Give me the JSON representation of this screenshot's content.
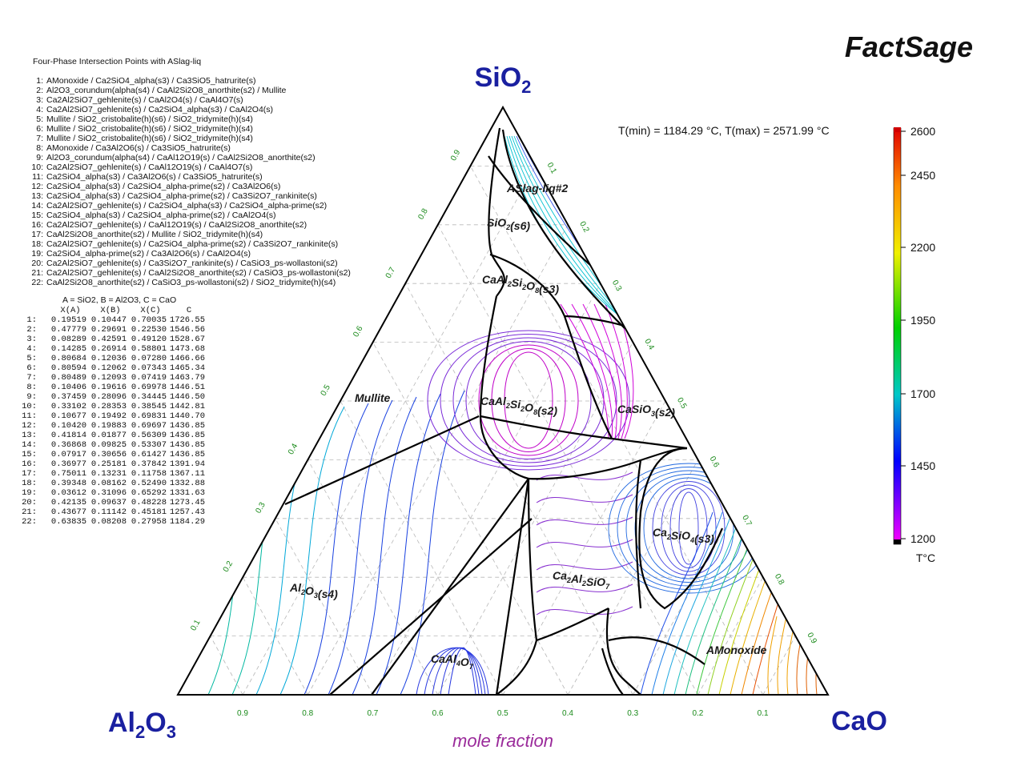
{
  "header": {
    "brand": "FactSage",
    "temp_range": "T(min) = 1184.29 °C, T(max) = 2571.99 °C"
  },
  "vertices": {
    "top": {
      "main": "SiO",
      "sub": "2"
    },
    "left": {
      "main": "Al",
      "sub1": "2",
      "mid": "O",
      "sub2": "3"
    },
    "right": {
      "main": "CaO"
    }
  },
  "axis": {
    "bottom_title": "mole fraction",
    "bottom_ticks": [
      "0.9",
      "0.8",
      "0.7",
      "0.6",
      "0.5",
      "0.4",
      "0.3",
      "0.2",
      "0.1"
    ],
    "left_ticks": [
      "0.1",
      "0.2",
      "0.3",
      "0.4",
      "0.5",
      "0.6",
      "0.7",
      "0.8",
      "0.9"
    ],
    "right_ticks": [
      "0.1",
      "0.2",
      "0.3",
      "0.4",
      "0.5",
      "0.6",
      "0.7",
      "0.8",
      "0.9"
    ]
  },
  "phase_labels": [
    {
      "parts": [
        [
          "ASlag-liq#2",
          ""
        ]
      ]
    },
    {
      "parts": [
        [
          "SiO",
          "2"
        ],
        [
          "(s6)",
          ""
        ]
      ]
    },
    {
      "parts": [
        [
          "CaAl",
          "2"
        ],
        [
          "Si",
          "2"
        ],
        [
          "O",
          "8"
        ],
        [
          "(s3)",
          ""
        ]
      ]
    },
    {
      "parts": [
        [
          "Mullite",
          ""
        ]
      ]
    },
    {
      "parts": [
        [
          "CaAl",
          "2"
        ],
        [
          "Si",
          "2"
        ],
        [
          "O",
          "8"
        ],
        [
          "(s2)",
          ""
        ]
      ]
    },
    {
      "parts": [
        [
          "CaSiO",
          "3"
        ],
        [
          "(s2)",
          ""
        ]
      ]
    },
    {
      "parts": [
        [
          "Ca",
          "2"
        ],
        [
          "SiO",
          "4"
        ],
        [
          "(s3)",
          ""
        ]
      ]
    },
    {
      "parts": [
        [
          "Al",
          "2"
        ],
        [
          "O",
          "3"
        ],
        [
          "(s4)",
          ""
        ]
      ]
    },
    {
      "parts": [
        [
          "Ca",
          "2"
        ],
        [
          "Al",
          "2"
        ],
        [
          "SiO",
          "7"
        ]
      ]
    },
    {
      "parts": [
        [
          "CaAl",
          "4"
        ],
        [
          "O",
          "7"
        ]
      ]
    },
    {
      "parts": [
        [
          "AMonoxide",
          ""
        ]
      ]
    }
  ],
  "colorbar": {
    "ticks": [
      "2600",
      "2450",
      "2200",
      "1950",
      "1700",
      "1450",
      "1200"
    ],
    "unit": "T°C",
    "colors": [
      "#e00000",
      "#ff8c00",
      "#f0f000",
      "#00d000",
      "#00c8c8",
      "#0000ff",
      "#ff00ff"
    ]
  },
  "legend": {
    "title": "Four-Phase Intersection Points with ASlag-liq",
    "entries": [
      "AMonoxide / Ca2SiO4_alpha(s3) / Ca3SiO5_hatrurite(s)",
      "Al2O3_corundum(alpha(s4) / CaAl2Si2O8_anorthite(s2) / Mullite",
      "Ca2Al2SiO7_gehlenite(s) / CaAl2O4(s) / CaAl4O7(s)",
      "Ca2Al2SiO7_gehlenite(s) / Ca2SiO4_alpha(s3) / CaAl2O4(s)",
      "Mullite / SiO2_cristobalite(h)(s6) / SiO2_tridymite(h)(s4)",
      "Mullite / SiO2_cristobalite(h)(s6) / SiO2_tridymite(h)(s4)",
      "Mullite / SiO2_cristobalite(h)(s6) / SiO2_tridymite(h)(s4)",
      "AMonoxide / Ca3Al2O6(s) / Ca3SiO5_hatrurite(s)",
      "Al2O3_corundum(alpha(s4) / CaAl12O19(s) / CaAl2Si2O8_anorthite(s2)",
      "Ca2Al2SiO7_gehlenite(s) / CaAl12O19(s) / CaAl4O7(s)",
      "Ca2SiO4_alpha(s3) / Ca3Al2O6(s) / Ca3SiO5_hatrurite(s)",
      "Ca2SiO4_alpha(s3) / Ca2SiO4_alpha-prime(s2) / Ca3Al2O6(s)",
      "Ca2SiO4_alpha(s3) / Ca2SiO4_alpha-prime(s2) / Ca3Si2O7_rankinite(s)",
      "Ca2Al2SiO7_gehlenite(s) / Ca2SiO4_alpha(s3) / Ca2SiO4_alpha-prime(s2)",
      "Ca2SiO4_alpha(s3) / Ca2SiO4_alpha-prime(s2) / CaAl2O4(s)",
      "Ca2Al2SiO7_gehlenite(s) / CaAl12O19(s) / CaAl2Si2O8_anorthite(s2)",
      "CaAl2Si2O8_anorthite(s2) / Mullite / SiO2_tridymite(h)(s4)",
      "Ca2Al2SiO7_gehlenite(s) / Ca2SiO4_alpha-prime(s2) / Ca3Si2O7_rankinite(s)",
      "Ca2SiO4_alpha-prime(s2) / Ca3Al2O6(s) / CaAl2O4(s)",
      "Ca2Al2SiO7_gehlenite(s) / Ca3Si2O7_rankinite(s) / CaSiO3_ps-wollastoni(s2)",
      "Ca2Al2SiO7_gehlenite(s) / CaAl2Si2O8_anorthite(s2) / CaSiO3_ps-wollastoni(s2)",
      "CaAl2Si2O8_anorthite(s2) / CaSiO3_ps-wollastoni(s2) / SiO2_tridymite(h)(s4)"
    ]
  },
  "table": {
    "caption": "A = SiO2,  B = Al2O3,  C = CaO",
    "headers": [
      "X(A)",
      "X(B)",
      "X(C)",
      "C"
    ],
    "rows": [
      [
        "0.19519",
        "0.10447",
        "0.70035",
        "1726.55"
      ],
      [
        "0.47779",
        "0.29691",
        "0.22530",
        "1546.56"
      ],
      [
        "0.08289",
        "0.42591",
        "0.49120",
        "1528.67"
      ],
      [
        "0.14285",
        "0.26914",
        "0.58801",
        "1473.68"
      ],
      [
        "0.80684",
        "0.12036",
        "0.07280",
        "1466.66"
      ],
      [
        "0.80594",
        "0.12062",
        "0.07343",
        "1465.34"
      ],
      [
        "0.80489",
        "0.12093",
        "0.07419",
        "1463.79"
      ],
      [
        "0.10406",
        "0.19616",
        "0.69978",
        "1446.51"
      ],
      [
        "0.37459",
        "0.28096",
        "0.34445",
        "1446.50"
      ],
      [
        "0.33102",
        "0.28353",
        "0.38545",
        "1442.81"
      ],
      [
        "0.10677",
        "0.19492",
        "0.69831",
        "1440.70"
      ],
      [
        "0.10420",
        "0.19883",
        "0.69697",
        "1436.85"
      ],
      [
        "0.41814",
        "0.01877",
        "0.56309",
        "1436.85"
      ],
      [
        "0.36868",
        "0.09825",
        "0.53307",
        "1436.85"
      ],
      [
        "0.07917",
        "0.30656",
        "0.61427",
        "1436.85"
      ],
      [
        "0.36977",
        "0.25181",
        "0.37842",
        "1391.94"
      ],
      [
        "0.75011",
        "0.13231",
        "0.11758",
        "1367.11"
      ],
      [
        "0.39348",
        "0.08162",
        "0.52490",
        "1332.88"
      ],
      [
        "0.03612",
        "0.31096",
        "0.65292",
        "1331.63"
      ],
      [
        "0.42135",
        "0.09637",
        "0.48228",
        "1273.45"
      ],
      [
        "0.43677",
        "0.11142",
        "0.45181",
        "1257.43"
      ],
      [
        "0.63835",
        "0.08208",
        "0.27958",
        "1184.29"
      ]
    ]
  }
}
